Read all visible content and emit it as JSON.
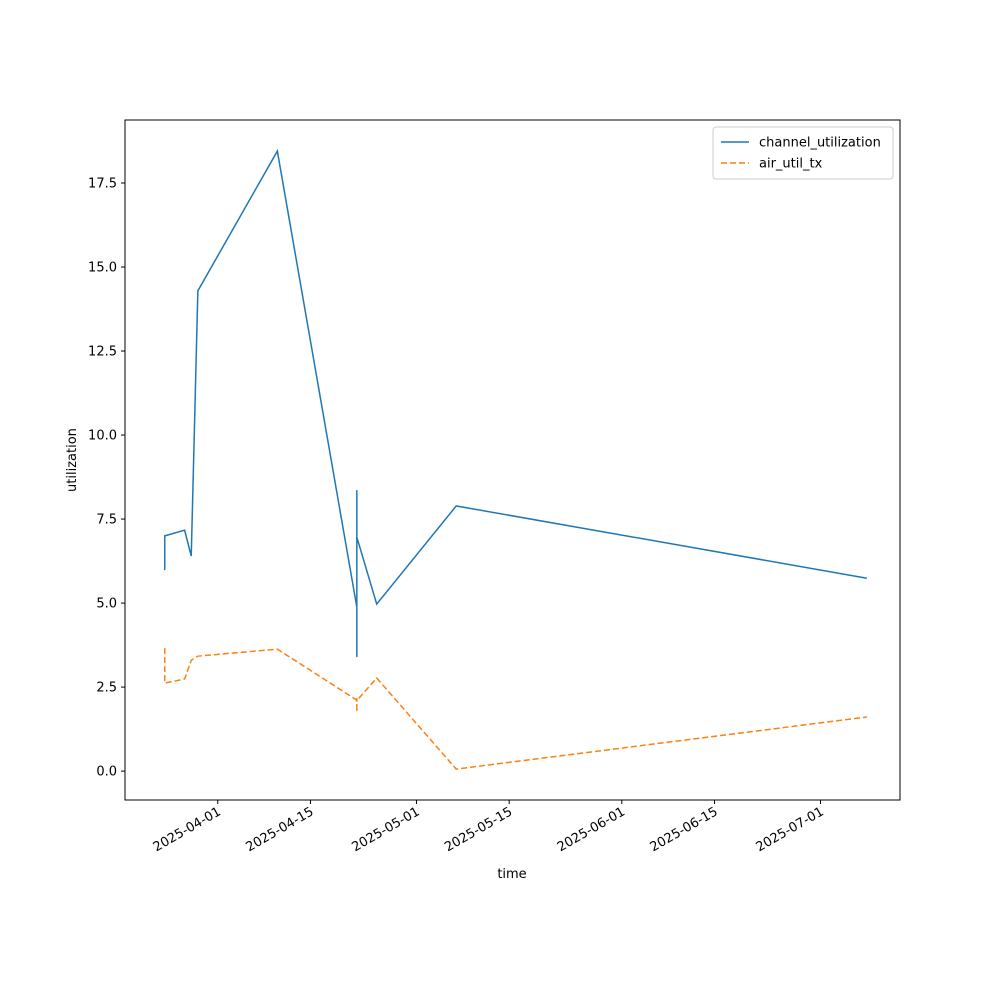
{
  "chart_data": {
    "type": "line",
    "xlabel": "time",
    "ylabel": "utilization",
    "x": [
      "2025-03-24",
      "2025-03-24",
      "2025-03-27",
      "2025-03-28",
      "2025-03-29",
      "2025-04-10",
      "2025-04-22",
      "2025-04-22",
      "2025-04-22",
      "2025-04-22",
      "2025-04-25",
      "2025-05-07",
      "2025-07-08"
    ],
    "series": [
      {
        "name": "channel_utilization",
        "color": "#1f77b4",
        "dash": "solid",
        "values": [
          5.98,
          7.0,
          7.17,
          6.4,
          14.29,
          18.45,
          4.88,
          8.36,
          3.39,
          6.96,
          4.97,
          7.89,
          5.74
        ]
      },
      {
        "name": "air_util_tx",
        "color": "#ff7f0e",
        "dash": "dashed",
        "values": [
          3.66,
          2.62,
          2.74,
          3.3,
          3.42,
          3.63,
          2.11,
          1.76,
          2.17,
          2.1,
          2.77,
          0.06,
          1.61
        ]
      }
    ],
    "xlim": [
      "2025-03-18",
      "2025-07-13"
    ],
    "xticks": [
      "2025-04-01",
      "2025-04-15",
      "2025-05-01",
      "2025-05-15",
      "2025-06-01",
      "2025-06-15",
      "2025-07-01"
    ],
    "ylim": [
      -0.86,
      19.375
    ],
    "yticks": [
      {
        "value": 0,
        "label": "0.0"
      },
      2.5,
      {
        "value": 5,
        "label": "5.0"
      },
      7.5,
      {
        "value": 10,
        "label": "10.0"
      },
      12.5,
      {
        "value": 15,
        "label": "15.0"
      },
      17.5
    ],
    "grid": false,
    "legend": "upper right"
  }
}
